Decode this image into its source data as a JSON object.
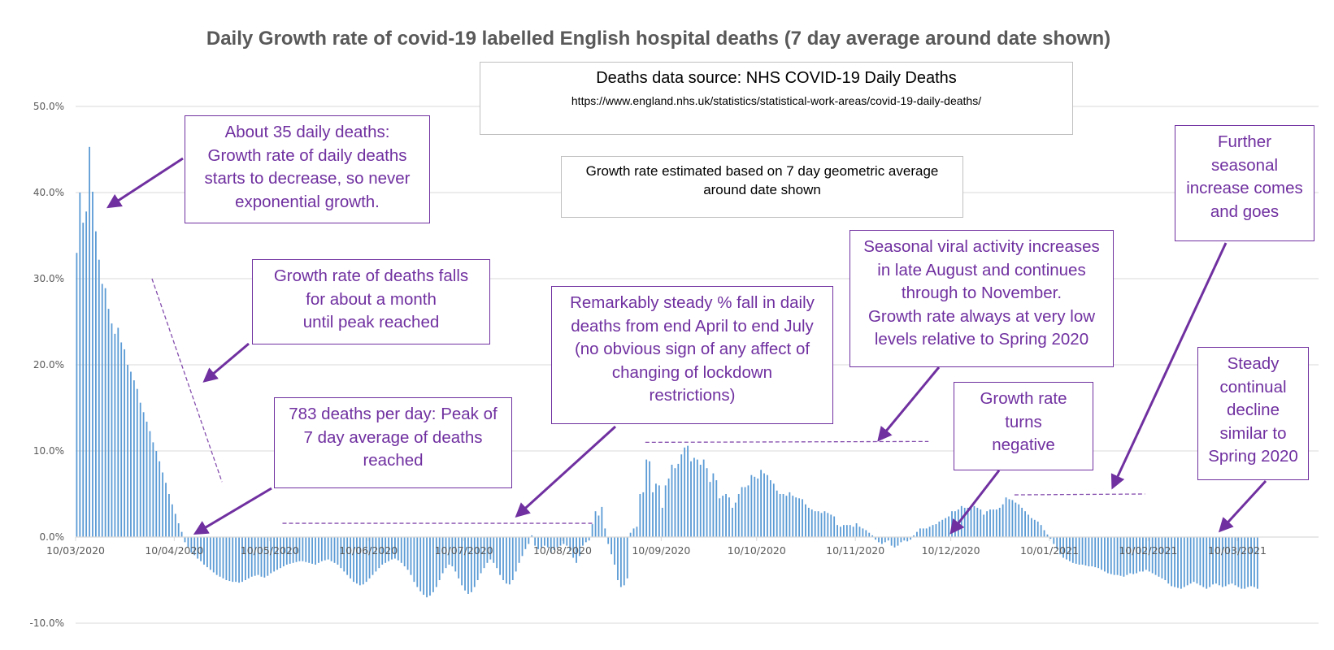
{
  "chart_data": {
    "type": "bar",
    "title": "Daily Growth rate of covid-19 labelled English hospital deaths (7 day average around date shown)",
    "xlabel": "",
    "ylabel": "",
    "ylim": [
      -0.1,
      0.5
    ],
    "yticks": [
      0.5,
      0.4,
      0.3,
      0.2,
      0.1,
      0.0,
      -0.1
    ],
    "ytick_labels": [
      "50.0%",
      "40.0%",
      "30.0%",
      "20.0%",
      "10.0%",
      "0.0%",
      "-10.0%"
    ],
    "grid": true,
    "legend": "none",
    "series_color": "#5b9bd5",
    "start_date": "10/03/2020",
    "xtick_labels": [
      "10/03/2020",
      "10/04/2020",
      "10/05/2020",
      "10/06/2020",
      "10/07/2020",
      "10/08/2020",
      "10/09/2020",
      "10/10/2020",
      "10/11/2020",
      "10/12/2020",
      "10/01/2021",
      "10/02/2021",
      "10/03/2021"
    ],
    "xtick_day_offsets": [
      0,
      31,
      61,
      92,
      122,
      153,
      184,
      214,
      245,
      275,
      306,
      337,
      365
    ],
    "series": [
      {
        "name": "Daily growth rate (7 day geometric average)",
        "values": [
          0.33,
          0.4,
          0.365,
          0.378,
          0.453,
          0.401,
          0.355,
          0.322,
          0.294,
          0.289,
          0.265,
          0.248,
          0.236,
          0.243,
          0.226,
          0.218,
          0.2,
          0.192,
          0.182,
          0.172,
          0.156,
          0.145,
          0.134,
          0.123,
          0.11,
          0.1,
          0.088,
          0.075,
          0.063,
          0.05,
          0.038,
          0.027,
          0.016,
          0.006,
          -0.006,
          -0.012,
          -0.018,
          -0.021,
          -0.025,
          -0.028,
          -0.032,
          -0.035,
          -0.038,
          -0.041,
          -0.044,
          -0.046,
          -0.048,
          -0.05,
          -0.051,
          -0.052,
          -0.052,
          -0.053,
          -0.052,
          -0.05,
          -0.048,
          -0.046,
          -0.045,
          -0.044,
          -0.046,
          -0.047,
          -0.045,
          -0.042,
          -0.04,
          -0.038,
          -0.036,
          -0.034,
          -0.032,
          -0.031,
          -0.03,
          -0.029,
          -0.028,
          -0.028,
          -0.029,
          -0.03,
          -0.031,
          -0.032,
          -0.03,
          -0.028,
          -0.027,
          -0.026,
          -0.028,
          -0.03,
          -0.032,
          -0.036,
          -0.04,
          -0.044,
          -0.048,
          -0.052,
          -0.054,
          -0.056,
          -0.055,
          -0.052,
          -0.048,
          -0.044,
          -0.04,
          -0.036,
          -0.032,
          -0.03,
          -0.028,
          -0.026,
          -0.025,
          -0.027,
          -0.03,
          -0.034,
          -0.038,
          -0.044,
          -0.052,
          -0.058,
          -0.063,
          -0.067,
          -0.07,
          -0.068,
          -0.064,
          -0.058,
          -0.05,
          -0.042,
          -0.036,
          -0.032,
          -0.034,
          -0.04,
          -0.048,
          -0.056,
          -0.062,
          -0.066,
          -0.064,
          -0.058,
          -0.05,
          -0.042,
          -0.036,
          -0.03,
          -0.026,
          -0.03,
          -0.036,
          -0.044,
          -0.05,
          -0.054,
          -0.055,
          -0.05,
          -0.04,
          -0.03,
          -0.022,
          -0.014,
          -0.008,
          0.002,
          -0.01,
          -0.014,
          -0.012,
          -0.01,
          -0.012,
          -0.018,
          -0.015,
          -0.012,
          -0.01,
          -0.008,
          -0.01,
          -0.016,
          -0.024,
          -0.03,
          -0.022,
          -0.01,
          -0.006,
          -0.004,
          0.015,
          0.03,
          0.025,
          0.035,
          0.01,
          -0.008,
          -0.02,
          -0.032,
          -0.05,
          -0.058,
          -0.056,
          -0.048,
          0.005,
          0.01,
          0.012,
          0.05,
          0.052,
          0.09,
          0.088,
          0.052,
          0.062,
          0.06,
          0.034,
          0.06,
          0.068,
          0.084,
          0.08,
          0.085,
          0.096,
          0.104,
          0.106,
          0.088,
          0.092,
          0.09,
          0.084,
          0.09,
          0.08,
          0.064,
          0.074,
          0.066,
          0.045,
          0.048,
          0.05,
          0.046,
          0.034,
          0.04,
          0.05,
          0.058,
          0.058,
          0.06,
          0.072,
          0.07,
          0.068,
          0.078,
          0.074,
          0.072,
          0.066,
          0.062,
          0.054,
          0.05,
          0.05,
          0.048,
          0.052,
          0.048,
          0.046,
          0.045,
          0.044,
          0.038,
          0.034,
          0.032,
          0.03,
          0.03,
          0.028,
          0.03,
          0.028,
          0.026,
          0.024,
          0.014,
          0.012,
          0.014,
          0.014,
          0.014,
          0.012,
          0.016,
          0.012,
          0.01,
          0.008,
          0.005,
          0.002,
          -0.003,
          -0.006,
          -0.008,
          -0.006,
          -0.004,
          -0.01,
          -0.012,
          -0.01,
          -0.006,
          -0.004,
          -0.005,
          -0.003,
          0.002,
          0.006,
          0.01,
          0.01,
          0.01,
          0.012,
          0.014,
          0.015,
          0.018,
          0.02,
          0.022,
          0.024,
          0.03,
          0.03,
          0.032,
          0.036,
          0.034,
          0.034,
          0.034,
          0.036,
          0.034,
          0.032,
          0.026,
          0.03,
          0.032,
          0.032,
          0.032,
          0.034,
          0.038,
          0.046,
          0.044,
          0.043,
          0.04,
          0.038,
          0.034,
          0.03,
          0.026,
          0.022,
          0.02,
          0.018,
          0.014,
          0.008,
          0.003,
          -0.002,
          -0.008,
          -0.014,
          -0.02,
          -0.024,
          -0.026,
          -0.028,
          -0.03,
          -0.031,
          -0.032,
          -0.032,
          -0.033,
          -0.034,
          -0.034,
          -0.035,
          -0.036,
          -0.038,
          -0.04,
          -0.042,
          -0.043,
          -0.044,
          -0.044,
          -0.045,
          -0.046,
          -0.044,
          -0.042,
          -0.043,
          -0.042,
          -0.04,
          -0.04,
          -0.038,
          -0.04,
          -0.042,
          -0.044,
          -0.046,
          -0.048,
          -0.05,
          -0.054,
          -0.057,
          -0.058,
          -0.059,
          -0.06,
          -0.058,
          -0.056,
          -0.054,
          -0.052,
          -0.054,
          -0.056,
          -0.058,
          -0.06,
          -0.058,
          -0.055,
          -0.054,
          -0.056,
          -0.058,
          -0.057,
          -0.055,
          -0.054,
          -0.056,
          -0.058,
          -0.06,
          -0.06,
          -0.058,
          -0.057,
          -0.058,
          -0.06
        ]
      }
    ],
    "reference_lines": [
      {
        "name": "spring-decline-trend",
        "from": [
          24,
          0.3
        ],
        "to": [
          46,
          0.064
        ]
      },
      {
        "name": "summer-steady-level",
        "from": [
          65,
          0.016
        ],
        "to": [
          163,
          0.016
        ]
      },
      {
        "name": "autumn-peak-level",
        "from": [
          179,
          0.11
        ],
        "to": [
          268,
          0.111
        ]
      },
      {
        "name": "winter-peak-level",
        "from": [
          295,
          0.049
        ],
        "to": [
          336,
          0.05
        ]
      }
    ]
  },
  "info_boxes": {
    "source_title": "Deaths data source: NHS COVID-19 Daily Deaths",
    "source_url": "https://www.england.nhs.uk/statistics/statistical-work-areas/covid-19-daily-deaths/",
    "method_line1": "Growth rate estimated based on 7 day geometric average",
    "method_line2": "around date shown"
  },
  "annotations": [
    {
      "lines": [
        "About 35 daily deaths:",
        "Growth rate of daily deaths",
        "starts to decrease, so never",
        "exponential growth."
      ]
    },
    {
      "lines": [
        "Growth rate of deaths falls",
        "for about a month",
        "until peak reached"
      ]
    },
    {
      "lines": [
        "783 deaths per day: Peak of",
        "7 day average of deaths",
        "reached"
      ]
    },
    {
      "lines": [
        "Remarkably steady % fall in daily",
        "deaths from end April to end July",
        "(no obvious sign of any affect of",
        "changing of lockdown",
        "restrictions)"
      ]
    },
    {
      "lines": [
        "Seasonal viral activity increases",
        "in late August and continues",
        "through to November.",
        "Growth rate always at very low",
        "levels relative to Spring 2020"
      ]
    },
    {
      "lines": [
        "Growth rate",
        "turns",
        "negative"
      ]
    },
    {
      "lines": [
        "Further",
        "seasonal",
        "increase comes",
        "and goes"
      ]
    },
    {
      "lines": [
        "Steady",
        "continual",
        "decline",
        "similar to",
        "Spring 2020"
      ]
    }
  ],
  "colors": {
    "bar": "#5b9bd5",
    "annotation": "#7030a0",
    "gridline": "#d9d9d9",
    "axis_text": "#595959"
  }
}
